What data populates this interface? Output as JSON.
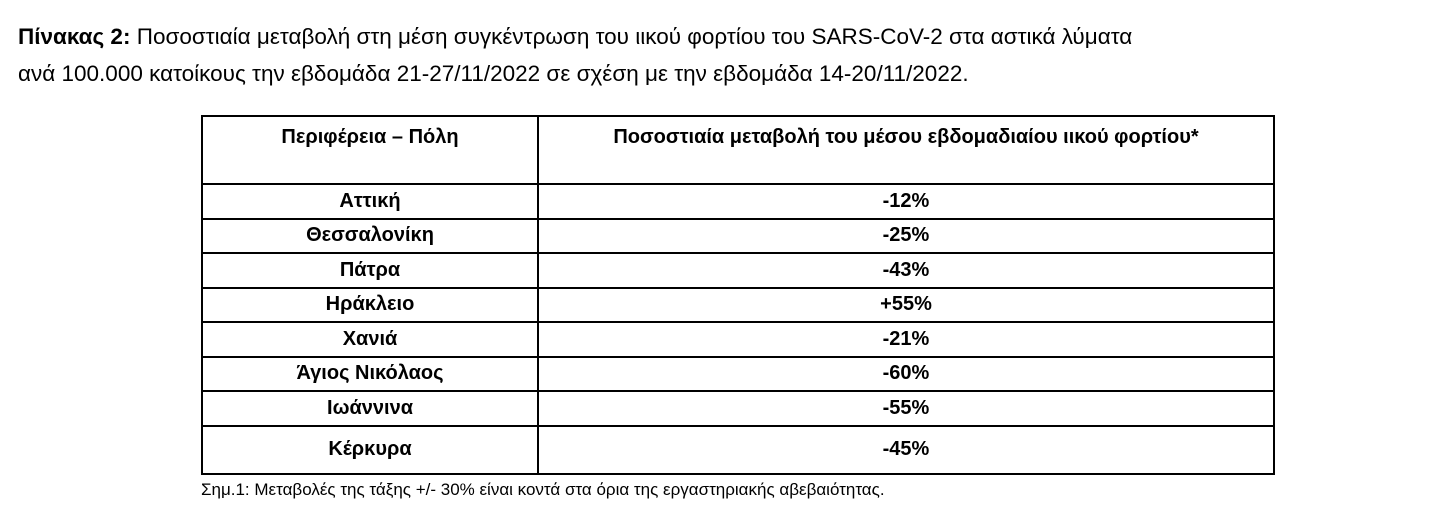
{
  "caption": {
    "label": "Πίνακας 2:",
    "lines": [
      "Ποσοστιαία μεταβολή στη μέση συγκέντρωση του ιικού φορτίου του SARS-CoV-2 στα αστικά λύματα",
      "ανά 100.000 κατοίκους την εβδομάδα 21-27/11/2022 σε σχέση με την εβδομάδα 14-20/11/2022."
    ]
  },
  "table": {
    "header": [
      "Περιφέρεια – Πόλη",
      "Ποσοστιαία μεταβολή του μέσου εβδομαδιαίου ιικού φορτίου*"
    ],
    "rows": [
      [
        "Αττική",
        "-12%"
      ],
      [
        "Θεσσαλονίκη",
        "-25%"
      ],
      [
        "Πάτρα",
        "-43%"
      ],
      [
        "Ηράκλειο",
        "+55%"
      ],
      [
        "Χανιά",
        "-21%"
      ],
      [
        "Άγιος Νικόλαος",
        "-60%"
      ],
      [
        "Ιωάννινα",
        "-55%"
      ],
      [
        "Κέρκυρα",
        "-45%"
      ]
    ]
  },
  "note": "Σημ.1: Μεταβολές της τάξης +/- 30% είναι κοντά στα όρια της εργαστηριακής αβεβαιότητας."
}
